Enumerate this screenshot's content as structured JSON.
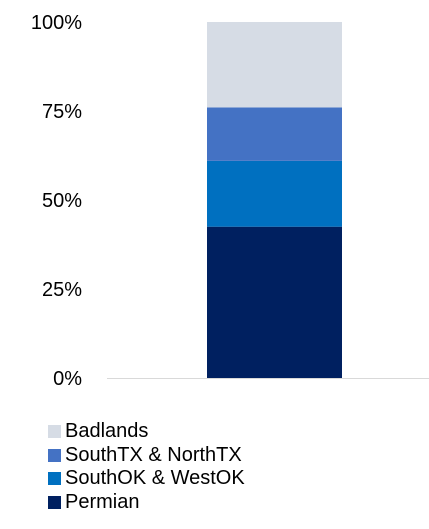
{
  "chart_data": {
    "type": "bar",
    "stacked": true,
    "categories": [
      ""
    ],
    "series": [
      {
        "name": "Permian",
        "values": [
          42.5
        ],
        "color": "#002060"
      },
      {
        "name": "SouthOK & WestOK",
        "values": [
          18.5
        ],
        "color": "#0070C0"
      },
      {
        "name": "SouthTX & NorthTX",
        "values": [
          15
        ],
        "color": "#4472C4"
      },
      {
        "name": "Badlands",
        "values": [
          24
        ],
        "color": "#D6DCE5"
      }
    ],
    "yticks": [
      "0%",
      "25%",
      "50%",
      "75%",
      "100%"
    ],
    "ylim": [
      0,
      100
    ],
    "grid": false,
    "legend_position": "bottom",
    "legend_order": [
      "Badlands",
      "SouthTX & NorthTX",
      "SouthOK & WestOK",
      "Permian"
    ],
    "axis_color": "#D9D9D9"
  }
}
